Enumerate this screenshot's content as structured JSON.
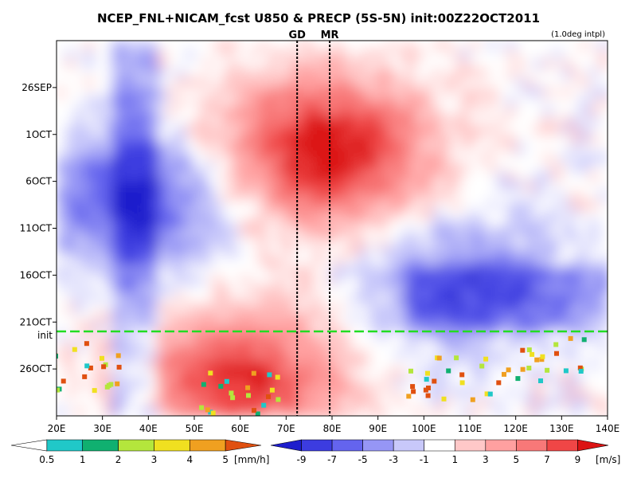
{
  "chart_data": {
    "type": "heatmap",
    "title": "NCEP_FNL+NICAM_fcst U850 & PRECP (5S-5N) init:00Z22OCT2011",
    "note": "(1.0deg intpl)",
    "x_axis": {
      "range": [
        20,
        140
      ],
      "ticks": [
        {
          "v": 20,
          "label": "20E"
        },
        {
          "v": 30,
          "label": "30E"
        },
        {
          "v": 40,
          "label": "40E"
        },
        {
          "v": 50,
          "label": "50E"
        },
        {
          "v": 60,
          "label": "60E"
        },
        {
          "v": 70,
          "label": "70E"
        },
        {
          "v": 80,
          "label": "80E"
        },
        {
          "v": 90,
          "label": "90E"
        },
        {
          "v": 100,
          "label": "100E"
        },
        {
          "v": 110,
          "label": "110E"
        },
        {
          "v": 120,
          "label": "120E"
        },
        {
          "v": 130,
          "label": "130E"
        },
        {
          "v": 140,
          "label": "140E"
        }
      ]
    },
    "y_axis": {
      "range": [
        "2011-09-21",
        "2011-10-31"
      ],
      "ticks": [
        {
          "date": "2011-09-26",
          "label": "26SEP"
        },
        {
          "date": "2011-10-01",
          "label": "1OCT"
        },
        {
          "date": "2011-10-06",
          "label": "6OCT"
        },
        {
          "date": "2011-10-11",
          "label": "11OCT"
        },
        {
          "date": "2011-10-16",
          "label": "16OCT"
        },
        {
          "date": "2011-10-21",
          "label": "21OCT"
        },
        {
          "date": "2011-10-26",
          "label": "26OCT"
        }
      ]
    },
    "init_line": {
      "date": "2011-10-22",
      "label": "init",
      "color": "#22dd22"
    },
    "site_lines": [
      {
        "label": "GD",
        "lon": 72.4
      },
      {
        "label": "MR",
        "lon": 79.5
      }
    ],
    "u850": {
      "units": "[m/s]",
      "levels": [
        "-9",
        "-7",
        "-5",
        "-3",
        "-1",
        "1",
        "3",
        "5",
        "7",
        "9"
      ],
      "colors": [
        "#1e1ecc",
        "#3c3ce0",
        "#6464ee",
        "#9696f5",
        "#c8c8fa",
        "#ffffff",
        "#ffc8c8",
        "#ffa0a0",
        "#f87878",
        "#f04646",
        "#dc1414"
      ],
      "features": [
        {
          "kind": "westerly",
          "lon": 78,
          "date": "2011-10-01",
          "peak": 7
        },
        {
          "kind": "westerly",
          "lon": 80,
          "date": "2011-10-05",
          "peak": 5
        },
        {
          "kind": "westerly",
          "lon": 60,
          "date": "2011-10-27",
          "peak": 9
        },
        {
          "kind": "easterly",
          "lon": 36,
          "date": "2011-10-08",
          "peak": -7
        },
        {
          "kind": "easterly",
          "lon": 110,
          "date": "2011-10-17",
          "peak": -5
        }
      ]
    },
    "precip": {
      "units": "[mm/h]",
      "levels": [
        "0.5",
        "1",
        "2",
        "3",
        "4",
        "5"
      ],
      "colors": [
        "#ffffff",
        "#20c8c8",
        "#10b070",
        "#b4e63c",
        "#f0e020",
        "#f0a020",
        "#e05010"
      ]
    }
  }
}
